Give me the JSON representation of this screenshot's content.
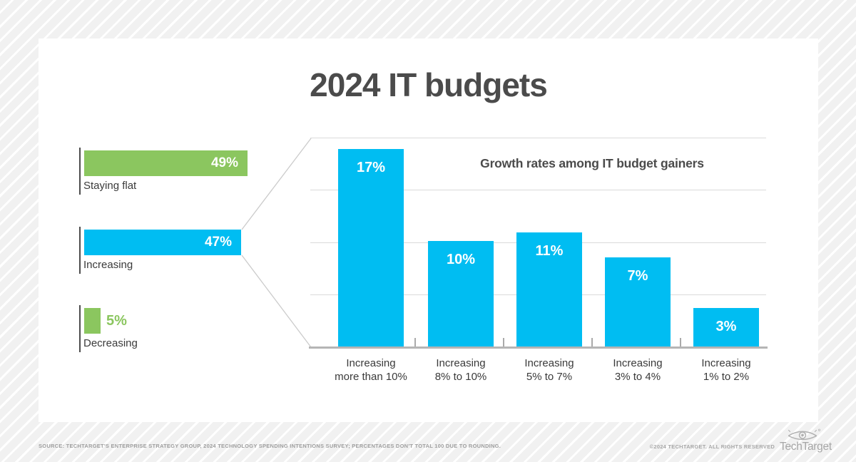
{
  "page": {
    "title": "2024 IT budgets"
  },
  "colors": {
    "green": "#8BC65F",
    "blue": "#00BDF2",
    "title_text": "#4B4B4B",
    "label_text": "#3A3A3A",
    "gridline": "#DADADA",
    "baseline": "#B5B5B5",
    "connector": "#CBCBCB",
    "footer_text": "#9E9E9E",
    "background": "#F1F1F1",
    "card": "#FFFFFF"
  },
  "chart_data": [
    {
      "type": "bar",
      "orientation": "horizontal",
      "title": "",
      "categories": [
        "Staying flat",
        "Increasing",
        "Decreasing"
      ],
      "values": [
        49,
        47,
        5
      ],
      "value_labels": [
        "49%",
        "47%",
        "5%"
      ],
      "bar_colors": [
        "green",
        "blue",
        "green"
      ],
      "value_label_position": [
        "inside",
        "inside",
        "outside"
      ],
      "xlim": [
        0,
        50
      ],
      "grid": false,
      "legend": "none"
    },
    {
      "type": "bar",
      "orientation": "vertical",
      "title": "Growth rates among IT budget gainers",
      "categories": [
        {
          "line1": "Increasing",
          "line2": "more than 10%"
        },
        {
          "line1": "Increasing",
          "line2": "8% to 10%"
        },
        {
          "line1": "Increasing",
          "line2": "5% to 7%"
        },
        {
          "line1": "Increasing",
          "line2": "3% to 4%"
        },
        {
          "line1": "Increasing",
          "line2": "1% to 2%"
        }
      ],
      "values": [
        17,
        10,
        11,
        7,
        3
      ],
      "value_labels": [
        "17%",
        "10%",
        "11%",
        "7%",
        "3%"
      ],
      "bar_color": "blue",
      "ylim": [
        0,
        20
      ],
      "gridline_values": [
        0,
        5,
        10,
        15,
        20
      ],
      "grid": true,
      "legend": "none"
    }
  ],
  "footer": {
    "source": "SOURCE: TECHTARGET'S ENTERPRISE STRATEGY GROUP, 2024 TECHNOLOGY SPENDING INTENTIONS SURVEY; PERCENTAGES DON'T TOTAL 100 DUE TO ROUNDING.",
    "copyright": "©2024 TECHTARGET. ALL RIGHTS RESERVED",
    "brand": "TechTarget"
  }
}
